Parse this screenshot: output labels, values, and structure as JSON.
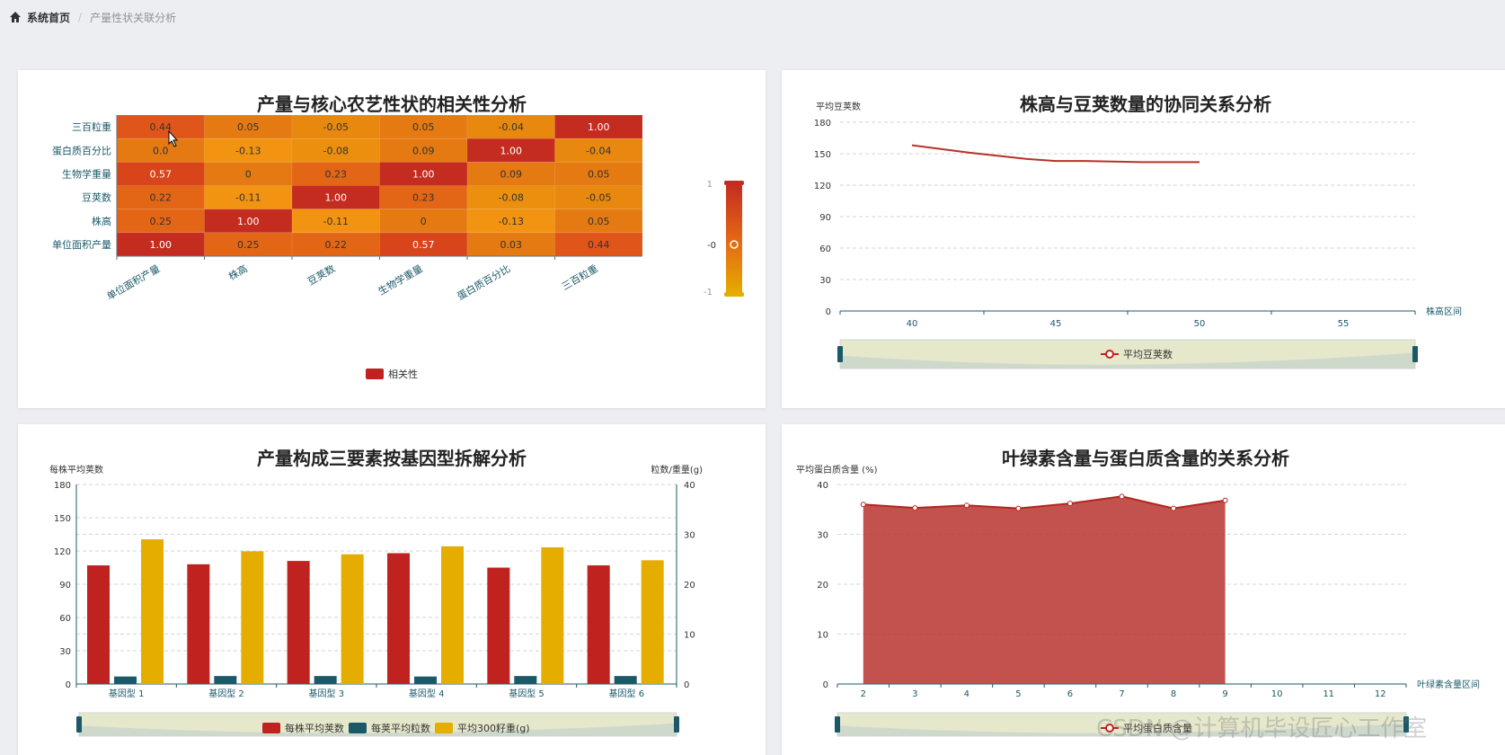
{
  "breadcrumb": {
    "home": "系统首页",
    "separator": "/",
    "current": "产量性状关联分析"
  },
  "colors": {
    "red": "#c0221f",
    "orange": "#f08a1b",
    "yellow": "#e5ad00",
    "teal": "#1b5968",
    "grid": "#d6d6d6"
  },
  "chart_data": [
    {
      "type": "heatmap",
      "title": "产量与核心农艺性状的相关性分析",
      "x_categories": [
        "单位面积产量",
        "株高",
        "豆荚数",
        "生物学重量",
        "蛋白质百分比",
        "三百粒重"
      ],
      "y_categories": [
        "单位面积产量",
        "株高",
        "豆荚数",
        "生物学重量",
        "蛋白质百分比",
        "三百粒重"
      ],
      "cells": [
        [
          "0.44",
          "0.05",
          "-0.05",
          "0.05",
          "-0.04",
          "1.00"
        ],
        [
          "0.0",
          "-0.13",
          "-0.08",
          "0.09",
          "1.00",
          "-0.04"
        ],
        [
          "0.57",
          "0",
          "0.23",
          "1.00",
          "0.09",
          "0.05"
        ],
        [
          "0.22",
          "-0.11",
          "1.00",
          "0.23",
          "-0.08",
          "-0.05"
        ],
        [
          "0.25",
          "1.00",
          "-0.11",
          "0",
          "-0.13",
          "0.05"
        ],
        [
          "1.00",
          "0.25",
          "0.22",
          "0.57",
          "0.03",
          "0.44"
        ]
      ],
      "visual_map": {
        "max_label": "1",
        "mid_label": "-0",
        "min_label": "-1"
      },
      "legend": [
        "相关性"
      ]
    },
    {
      "type": "line",
      "title": "株高与豆荚数量的协同关系分析",
      "ylabel": "平均豆荚数",
      "xlabel": "株高区间",
      "ylim": [
        0,
        180
      ],
      "y_ticks": [
        "0",
        "30",
        "60",
        "90",
        "120",
        "150",
        "180"
      ],
      "x_ticks": [
        "40",
        "45",
        "50",
        "55"
      ],
      "xlim": [
        37.5,
        57.5
      ],
      "x": [
        40,
        42,
        44,
        45,
        46,
        48,
        50
      ],
      "series": [
        {
          "name": "平均豆荚数",
          "values": [
            158,
            151,
            145,
            143,
            143,
            142,
            142
          ]
        }
      ],
      "legend": [
        "平均豆荚数"
      ]
    },
    {
      "type": "bar",
      "title": "产量构成三要素按基因型拆解分析",
      "ylabel": "每株平均荚数",
      "y2label": "粒数/重量(g)",
      "ylim": [
        0,
        180
      ],
      "y2lim": [
        0,
        40
      ],
      "y_ticks": [
        "0",
        "30",
        "60",
        "90",
        "120",
        "150",
        "180"
      ],
      "y2_ticks": [
        "0",
        "10",
        "20",
        "30",
        "40"
      ],
      "categories": [
        "基因型 1",
        "基因型 2",
        "基因型 3",
        "基因型 4",
        "基因型 5",
        "基因型 6"
      ],
      "series": [
        {
          "name": "每株平均荚数",
          "axis": "left",
          "values": [
            107,
            108,
            111,
            118,
            105,
            107
          ]
        },
        {
          "name": "每荚平均粒数",
          "axis": "right",
          "values": [
            1.5,
            1.6,
            1.6,
            1.5,
            1.6,
            1.6
          ]
        },
        {
          "name": "平均300籽重(g)",
          "axis": "right",
          "values": [
            29,
            26.6,
            26,
            27.6,
            27.4,
            24.8
          ]
        }
      ],
      "legend": [
        "每株平均荚数",
        "每荚平均粒数",
        "平均300籽重(g)"
      ]
    },
    {
      "type": "area",
      "title": "叶绿素含量与蛋白质含量的关系分析",
      "ylabel": "平均蛋白质含量 (%)",
      "xlabel": "叶绿素含量区间",
      "ylim": [
        0,
        40
      ],
      "y_ticks": [
        "0",
        "10",
        "20",
        "30",
        "40"
      ],
      "x_ticks": [
        "2",
        "3",
        "4",
        "5",
        "6",
        "7",
        "8",
        "9",
        "10",
        "11",
        "12"
      ],
      "x": [
        2,
        3,
        4,
        5,
        6,
        7,
        8,
        9
      ],
      "series": [
        {
          "name": "平均蛋白质含量",
          "values": [
            36,
            35.3,
            35.8,
            35.2,
            36.2,
            37.6,
            35.2,
            36.8
          ]
        }
      ],
      "legend": [
        "平均蛋白质含量"
      ]
    }
  ],
  "watermark": "CSDN @计算机毕设匠心工作室"
}
